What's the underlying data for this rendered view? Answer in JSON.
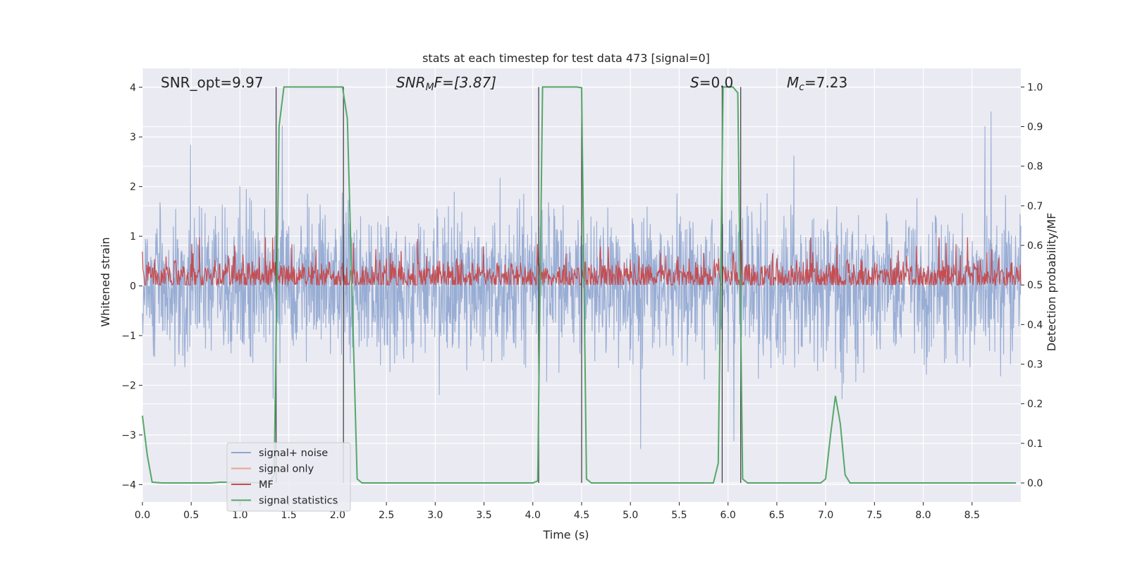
{
  "chart_data": {
    "type": "line",
    "title": "stats at each timestep for test data 473 [signal=0]",
    "xlabel": "Time (s)",
    "ylabel_left": "Whitened strain",
    "ylabel_right": "Detection probability/MF",
    "xlim": [
      0,
      9
    ],
    "ylim_left": [
      -4.35,
      4.38
    ],
    "ylim_right": [
      -0.048,
      1.047
    ],
    "grid": true,
    "x_ticks": [
      "0.0",
      "0.5",
      "1.0",
      "1.5",
      "2.0",
      "2.5",
      "3.0",
      "3.5",
      "4.0",
      "4.5",
      "5.0",
      "5.5",
      "6.0",
      "6.5",
      "7.0",
      "7.5",
      "8.0",
      "8.5"
    ],
    "y_ticks_left": [
      "−4",
      "−3",
      "−2",
      "−1",
      "0",
      "1",
      "2",
      "3",
      "4"
    ],
    "y_ticks_right": [
      "0.0",
      "0.1",
      "0.2",
      "0.3",
      "0.4",
      "0.5",
      "0.6",
      "0.7",
      "0.8",
      "0.9",
      "1.0"
    ],
    "annotations": {
      "snr_opt": "SNR_opt=9.97",
      "snr_mf_main": "SNR",
      "snr_mf_sub": "M",
      "snr_mf_rest": "F=[3.87]",
      "s_main": "S",
      "s_rest": "=0.0",
      "mc_main": "M",
      "mc_sub": "c",
      "mc_rest": "=7.23"
    },
    "legend": {
      "placement": "lower-left",
      "entries": [
        {
          "label": "signal+ noise",
          "color": "#8fa6d0"
        },
        {
          "label": "signal only",
          "color": "#e8a78a"
        },
        {
          "label": "MF",
          "color": "#c44e52"
        },
        {
          "label": "signal statistics",
          "color": "#55a868"
        }
      ]
    },
    "colors": {
      "noise": "#8fa6d0",
      "signal_only": "#e8a78a",
      "mf": "#c44e52",
      "statistics": "#55a868",
      "markers": "#3a3a3a",
      "background": "#eaeaf2"
    },
    "series": [
      {
        "name": "signal statistics",
        "axis": "right",
        "x": [
          0.0,
          0.05,
          0.1,
          0.2,
          0.7,
          0.8,
          1.3,
          1.35,
          1.4,
          1.45,
          2.05,
          2.1,
          2.2,
          2.25,
          4.0,
          4.05,
          4.1,
          4.15,
          4.45,
          4.5,
          4.55,
          4.6,
          5.85,
          5.9,
          5.95,
          6.0,
          6.05,
          6.1,
          6.15,
          6.2,
          6.25,
          6.95,
          7.0,
          7.05,
          7.1,
          7.15,
          7.2,
          7.25,
          7.3,
          8.95
        ],
        "y": [
          0.17,
          0.07,
          0.002,
          0.0,
          0.0,
          0.002,
          0.0,
          0.02,
          0.9,
          1.0,
          1.0,
          0.92,
          0.01,
          0.0,
          0.0,
          0.005,
          1.0,
          1.0,
          1.0,
          0.998,
          0.01,
          0.0,
          0.0,
          0.05,
          1.0,
          1.0,
          1.0,
          0.985,
          0.01,
          0.0,
          0.0,
          0.0,
          0.01,
          0.12,
          0.22,
          0.15,
          0.02,
          0.0,
          0.0,
          0.0
        ]
      }
    ],
    "markers_x": [
      1.37,
      2.06,
      4.06,
      4.5,
      5.94,
      6.13
    ]
  }
}
